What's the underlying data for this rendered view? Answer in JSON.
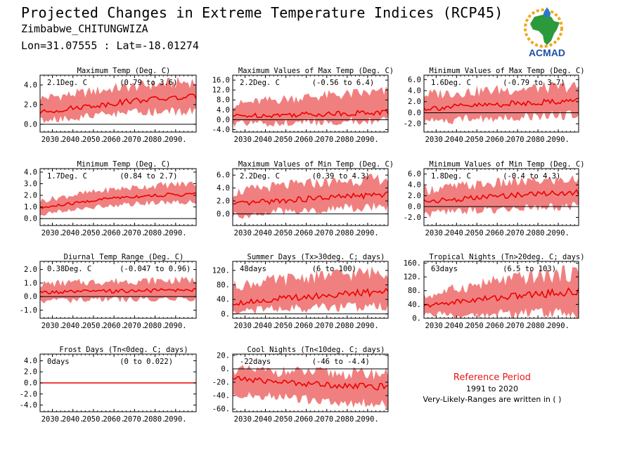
{
  "header": {
    "title": "Projected Changes in Extreme Temperature Indices (RCP45)",
    "location": "Zimbabwe_CHITUNGWIZA",
    "coords": "Lon=31.07555 : Lat=-18.01274"
  },
  "logo": {
    "text": "ACMAD",
    "colors": {
      "africa": "#2a9a3a",
      "sun": "#f2a81d",
      "text": "#1f4f9f",
      "drop": "#2a78c8"
    }
  },
  "reference": {
    "title": "Reference Period",
    "period": "1991 to 2020",
    "note": "Very-Likely-Ranges are written in ( )"
  },
  "colors": {
    "band": "#f08080",
    "line": "#ee0000",
    "zero": "#000000"
  },
  "chart_data": [
    {
      "type": "area",
      "title": "Maximum Temp (Deg. C)",
      "value_label": "2.1Deg. C",
      "range_label": "(0.79 to 3.6)",
      "x_range": [
        2024,
        2100
      ],
      "x_ticks": [
        2030,
        2040,
        2050,
        2060,
        2070,
        2080,
        2090
      ],
      "ylim": [
        -0.8,
        5.0
      ],
      "y_ticks": [
        0,
        2,
        4
      ],
      "y_tick_labels": [
        "0.0",
        "2.0",
        "4.0"
      ],
      "median": [
        [
          2024,
          1.2
        ],
        [
          2035,
          1.5
        ],
        [
          2045,
          1.8
        ],
        [
          2055,
          2.0
        ],
        [
          2065,
          2.3
        ],
        [
          2075,
          2.5
        ],
        [
          2085,
          2.6
        ],
        [
          2100,
          2.8
        ]
      ],
      "lower": [
        [
          2024,
          0.4
        ],
        [
          2040,
          0.7
        ],
        [
          2060,
          1.1
        ],
        [
          2080,
          1.3
        ],
        [
          2100,
          1.4
        ]
      ],
      "upper": [
        [
          2024,
          2.6
        ],
        [
          2040,
          3.0
        ],
        [
          2060,
          3.6
        ],
        [
          2080,
          4.0
        ],
        [
          2100,
          4.3
        ]
      ]
    },
    {
      "type": "area",
      "title": "Maximum Values of Max Temp (Deg. C)",
      "value_label": "2.2Deg. C",
      "range_label": "(-0.56 to 6.4)",
      "x_range": [
        2024,
        2100
      ],
      "x_ticks": [
        2030,
        2040,
        2050,
        2060,
        2070,
        2080,
        2090
      ],
      "ylim": [
        -5.0,
        18.0
      ],
      "y_ticks": [
        -4,
        0,
        4,
        8,
        12,
        16
      ],
      "y_tick_labels": [
        "-4.0",
        "0.0",
        "4.0",
        "8.0",
        "12.0",
        "16.0"
      ],
      "median": [
        [
          2024,
          1.5
        ],
        [
          2040,
          1.8
        ],
        [
          2060,
          2.2
        ],
        [
          2080,
          2.6
        ],
        [
          2100,
          3.0
        ]
      ],
      "lower": [
        [
          2024,
          -1.5
        ],
        [
          2040,
          -1.2
        ],
        [
          2060,
          -0.8
        ],
        [
          2080,
          -0.5
        ],
        [
          2100,
          -0.3
        ]
      ],
      "upper": [
        [
          2024,
          6.0
        ],
        [
          2040,
          7.5
        ],
        [
          2060,
          9.0
        ],
        [
          2080,
          10.0
        ],
        [
          2100,
          11.0
        ]
      ]
    },
    {
      "type": "area",
      "title": "Minimum Values of Max Temp (Deg. C)",
      "value_label": "1.6Deg. C",
      "range_label": "(-0.79 to 3.7)",
      "x_range": [
        2024,
        2100
      ],
      "x_ticks": [
        2030,
        2040,
        2050,
        2060,
        2070,
        2080,
        2090
      ],
      "ylim": [
        -3.5,
        6.8
      ],
      "y_ticks": [
        -2,
        0,
        2,
        4,
        6
      ],
      "y_tick_labels": [
        "-2.0",
        "0.0",
        "2.0",
        "4.0",
        "6.0"
      ],
      "median": [
        [
          2024,
          0.8
        ],
        [
          2040,
          1.1
        ],
        [
          2060,
          1.5
        ],
        [
          2080,
          1.9
        ],
        [
          2100,
          2.2
        ]
      ],
      "lower": [
        [
          2024,
          -1.5
        ],
        [
          2040,
          -1.2
        ],
        [
          2060,
          -0.8
        ],
        [
          2080,
          -0.5
        ],
        [
          2100,
          -0.3
        ]
      ],
      "upper": [
        [
          2024,
          3.2
        ],
        [
          2040,
          3.6
        ],
        [
          2060,
          4.0
        ],
        [
          2080,
          4.4
        ],
        [
          2100,
          4.6
        ]
      ]
    },
    {
      "type": "area",
      "title": "Minimum Temp (Deg. C)",
      "value_label": "1.7Deg. C",
      "range_label": "(0.84 to 2.7)",
      "x_range": [
        2024,
        2100
      ],
      "x_ticks": [
        2030,
        2040,
        2050,
        2060,
        2070,
        2080,
        2090
      ],
      "ylim": [
        -0.6,
        4.3
      ],
      "y_ticks": [
        0,
        1,
        2,
        3,
        4
      ],
      "y_tick_labels": [
        "0.0",
        "1.0",
        "2.0",
        "3.0",
        "4.0"
      ],
      "median": [
        [
          2024,
          0.9
        ],
        [
          2040,
          1.3
        ],
        [
          2060,
          1.8
        ],
        [
          2080,
          2.0
        ],
        [
          2100,
          2.1
        ]
      ],
      "lower": [
        [
          2024,
          0.4
        ],
        [
          2040,
          0.8
        ],
        [
          2060,
          1.2
        ],
        [
          2080,
          1.4
        ],
        [
          2100,
          1.5
        ]
      ],
      "upper": [
        [
          2024,
          1.5
        ],
        [
          2040,
          2.0
        ],
        [
          2060,
          2.5
        ],
        [
          2080,
          2.8
        ],
        [
          2100,
          3.0
        ]
      ]
    },
    {
      "type": "area",
      "title": "Maximum Values of Min Temp (Deg. C)",
      "value_label": "2.2Deg. C",
      "range_label": "(0.39 to 4.3)",
      "x_range": [
        2024,
        2100
      ],
      "x_ticks": [
        2030,
        2040,
        2050,
        2060,
        2070,
        2080,
        2090
      ],
      "ylim": [
        -1.8,
        7.0
      ],
      "y_ticks": [
        0,
        2,
        4,
        6
      ],
      "y_tick_labels": [
        "0.0",
        "2.0",
        "4.0",
        "6.0"
      ],
      "median": [
        [
          2024,
          1.4
        ],
        [
          2040,
          1.9
        ],
        [
          2060,
          2.3
        ],
        [
          2080,
          2.7
        ],
        [
          2100,
          3.0
        ]
      ],
      "lower": [
        [
          2024,
          -0.3
        ],
        [
          2040,
          0.3
        ],
        [
          2060,
          0.7
        ],
        [
          2080,
          1.0
        ],
        [
          2100,
          1.2
        ]
      ],
      "upper": [
        [
          2024,
          3.2
        ],
        [
          2040,
          4.0
        ],
        [
          2060,
          4.6
        ],
        [
          2080,
          5.0
        ],
        [
          2100,
          5.4
        ]
      ]
    },
    {
      "type": "area",
      "title": "Minimum Values of Min Temp (Deg. C)",
      "value_label": "1.8Deg. C",
      "range_label": "(-0.4 to 4.3)",
      "x_range": [
        2024,
        2100
      ],
      "x_ticks": [
        2030,
        2040,
        2050,
        2060,
        2070,
        2080,
        2090
      ],
      "ylim": [
        -3.5,
        7.0
      ],
      "y_ticks": [
        -2,
        0,
        2,
        4,
        6
      ],
      "y_tick_labels": [
        "-2.0",
        "0.0",
        "2.0",
        "4.0",
        "6.0"
      ],
      "median": [
        [
          2024,
          1.0
        ],
        [
          2040,
          1.3
        ],
        [
          2060,
          1.9
        ],
        [
          2080,
          2.4
        ],
        [
          2100,
          2.6
        ]
      ],
      "lower": [
        [
          2024,
          -1.3
        ],
        [
          2040,
          -0.9
        ],
        [
          2060,
          -0.4
        ],
        [
          2080,
          0.0
        ],
        [
          2100,
          0.2
        ]
      ],
      "upper": [
        [
          2024,
          3.0
        ],
        [
          2040,
          3.6
        ],
        [
          2060,
          4.2
        ],
        [
          2080,
          4.6
        ],
        [
          2100,
          4.9
        ]
      ]
    },
    {
      "type": "area",
      "title": "Diurnal Temp Range (Deg. C)",
      "value_label": "0.38Deg. C",
      "range_label": "(-0.047 to 0.96)",
      "x_range": [
        2024,
        2100
      ],
      "x_ticks": [
        2030,
        2040,
        2050,
        2060,
        2070,
        2080,
        2090
      ],
      "ylim": [
        -1.6,
        2.6
      ],
      "y_ticks": [
        -1,
        0,
        1,
        2
      ],
      "y_tick_labels": [
        "-1.0",
        "0.0",
        "1.0",
        "2.0"
      ],
      "median": [
        [
          2024,
          0.3
        ],
        [
          2040,
          0.35
        ],
        [
          2060,
          0.4
        ],
        [
          2080,
          0.45
        ],
        [
          2100,
          0.5
        ]
      ],
      "lower": [
        [
          2024,
          -0.3
        ],
        [
          2040,
          -0.25
        ],
        [
          2060,
          -0.2
        ],
        [
          2080,
          -0.15
        ],
        [
          2100,
          -0.1
        ]
      ],
      "upper": [
        [
          2024,
          0.9
        ],
        [
          2040,
          1.0
        ],
        [
          2060,
          1.1
        ],
        [
          2080,
          1.15
        ],
        [
          2100,
          1.2
        ]
      ]
    },
    {
      "type": "area",
      "title": "Summer Days (Tx>30deg. C; days)",
      "value_label": "48days",
      "range_label": "(6 to 100)",
      "x_range": [
        2024,
        2100
      ],
      "x_ticks": [
        2030,
        2040,
        2050,
        2060,
        2070,
        2080,
        2090
      ],
      "ylim": [
        -12,
        145
      ],
      "y_ticks": [
        0,
        40,
        80,
        120
      ],
      "y_tick_labels": [
        "0.",
        "40.",
        "80.",
        "120."
      ],
      "median": [
        [
          2024,
          30
        ],
        [
          2040,
          38
        ],
        [
          2060,
          48
        ],
        [
          2080,
          55
        ],
        [
          2100,
          62
        ]
      ],
      "lower": [
        [
          2024,
          8
        ],
        [
          2040,
          12
        ],
        [
          2060,
          16
        ],
        [
          2080,
          20
        ],
        [
          2100,
          22
        ]
      ],
      "upper": [
        [
          2024,
          75
        ],
        [
          2040,
          88
        ],
        [
          2060,
          100
        ],
        [
          2080,
          108
        ],
        [
          2100,
          115
        ]
      ]
    },
    {
      "type": "area",
      "title": "Tropical Nights (Tn>20deg. C; days)",
      "value_label": "63days",
      "range_label": "(6.5 to 103)",
      "x_range": [
        2024,
        2100
      ],
      "x_ticks": [
        2030,
        2040,
        2050,
        2060,
        2070,
        2080,
        2090
      ],
      "ylim": [
        0,
        165
      ],
      "y_ticks": [
        0,
        40,
        80,
        120,
        160
      ],
      "y_tick_labels": [
        "0.",
        "40.",
        "80.",
        "120.",
        "160."
      ],
      "median": [
        [
          2024,
          35
        ],
        [
          2040,
          48
        ],
        [
          2060,
          60
        ],
        [
          2080,
          70
        ],
        [
          2100,
          78
        ]
      ],
      "lower": [
        [
          2024,
          10
        ],
        [
          2040,
          12
        ],
        [
          2060,
          14
        ],
        [
          2080,
          15
        ],
        [
          2100,
          16
        ]
      ],
      "upper": [
        [
          2024,
          60
        ],
        [
          2040,
          85
        ],
        [
          2060,
          105
        ],
        [
          2080,
          120
        ],
        [
          2100,
          130
        ]
      ]
    },
    {
      "type": "area",
      "title": "Frost Days (Tn<0deg. C; days)",
      "value_label": "0days",
      "range_label": "(0 to 0.022)",
      "x_range": [
        2024,
        2100
      ],
      "x_ticks": [
        2030,
        2040,
        2050,
        2060,
        2070,
        2080,
        2090
      ],
      "ylim": [
        -5.2,
        5.2
      ],
      "y_ticks": [
        -4,
        -2,
        0,
        2,
        4
      ],
      "y_tick_labels": [
        "-4.0",
        "-2.0",
        "0.0",
        "2.0",
        "4.0"
      ],
      "median": [
        [
          2024,
          0
        ],
        [
          2100,
          0
        ]
      ],
      "lower": [
        [
          2024,
          0
        ],
        [
          2100,
          0
        ]
      ],
      "upper": [
        [
          2024,
          0
        ],
        [
          2100,
          0
        ]
      ]
    },
    {
      "type": "area",
      "title": "Cool Nights (Tn<10deg. C; days)",
      "value_label": "-22days",
      "range_label": "(-46 to -4.4)",
      "x_range": [
        2024,
        2100
      ],
      "x_ticks": [
        2030,
        2040,
        2050,
        2060,
        2070,
        2080,
        2090
      ],
      "ylim": [
        -64,
        22
      ],
      "y_ticks": [
        -60,
        -40,
        -20,
        0,
        20
      ],
      "y_tick_labels": [
        "-60.",
        "-40.",
        "-20.",
        "0.",
        "20."
      ],
      "median": [
        [
          2024,
          -14
        ],
        [
          2040,
          -18
        ],
        [
          2060,
          -22
        ],
        [
          2080,
          -25
        ],
        [
          2100,
          -27
        ]
      ],
      "lower": [
        [
          2024,
          -36
        ],
        [
          2040,
          -40
        ],
        [
          2060,
          -45
        ],
        [
          2080,
          -50
        ],
        [
          2100,
          -52
        ]
      ],
      "upper": [
        [
          2024,
          -2
        ],
        [
          2040,
          -4
        ],
        [
          2060,
          -6
        ],
        [
          2080,
          -8
        ],
        [
          2100,
          -8
        ]
      ]
    }
  ]
}
